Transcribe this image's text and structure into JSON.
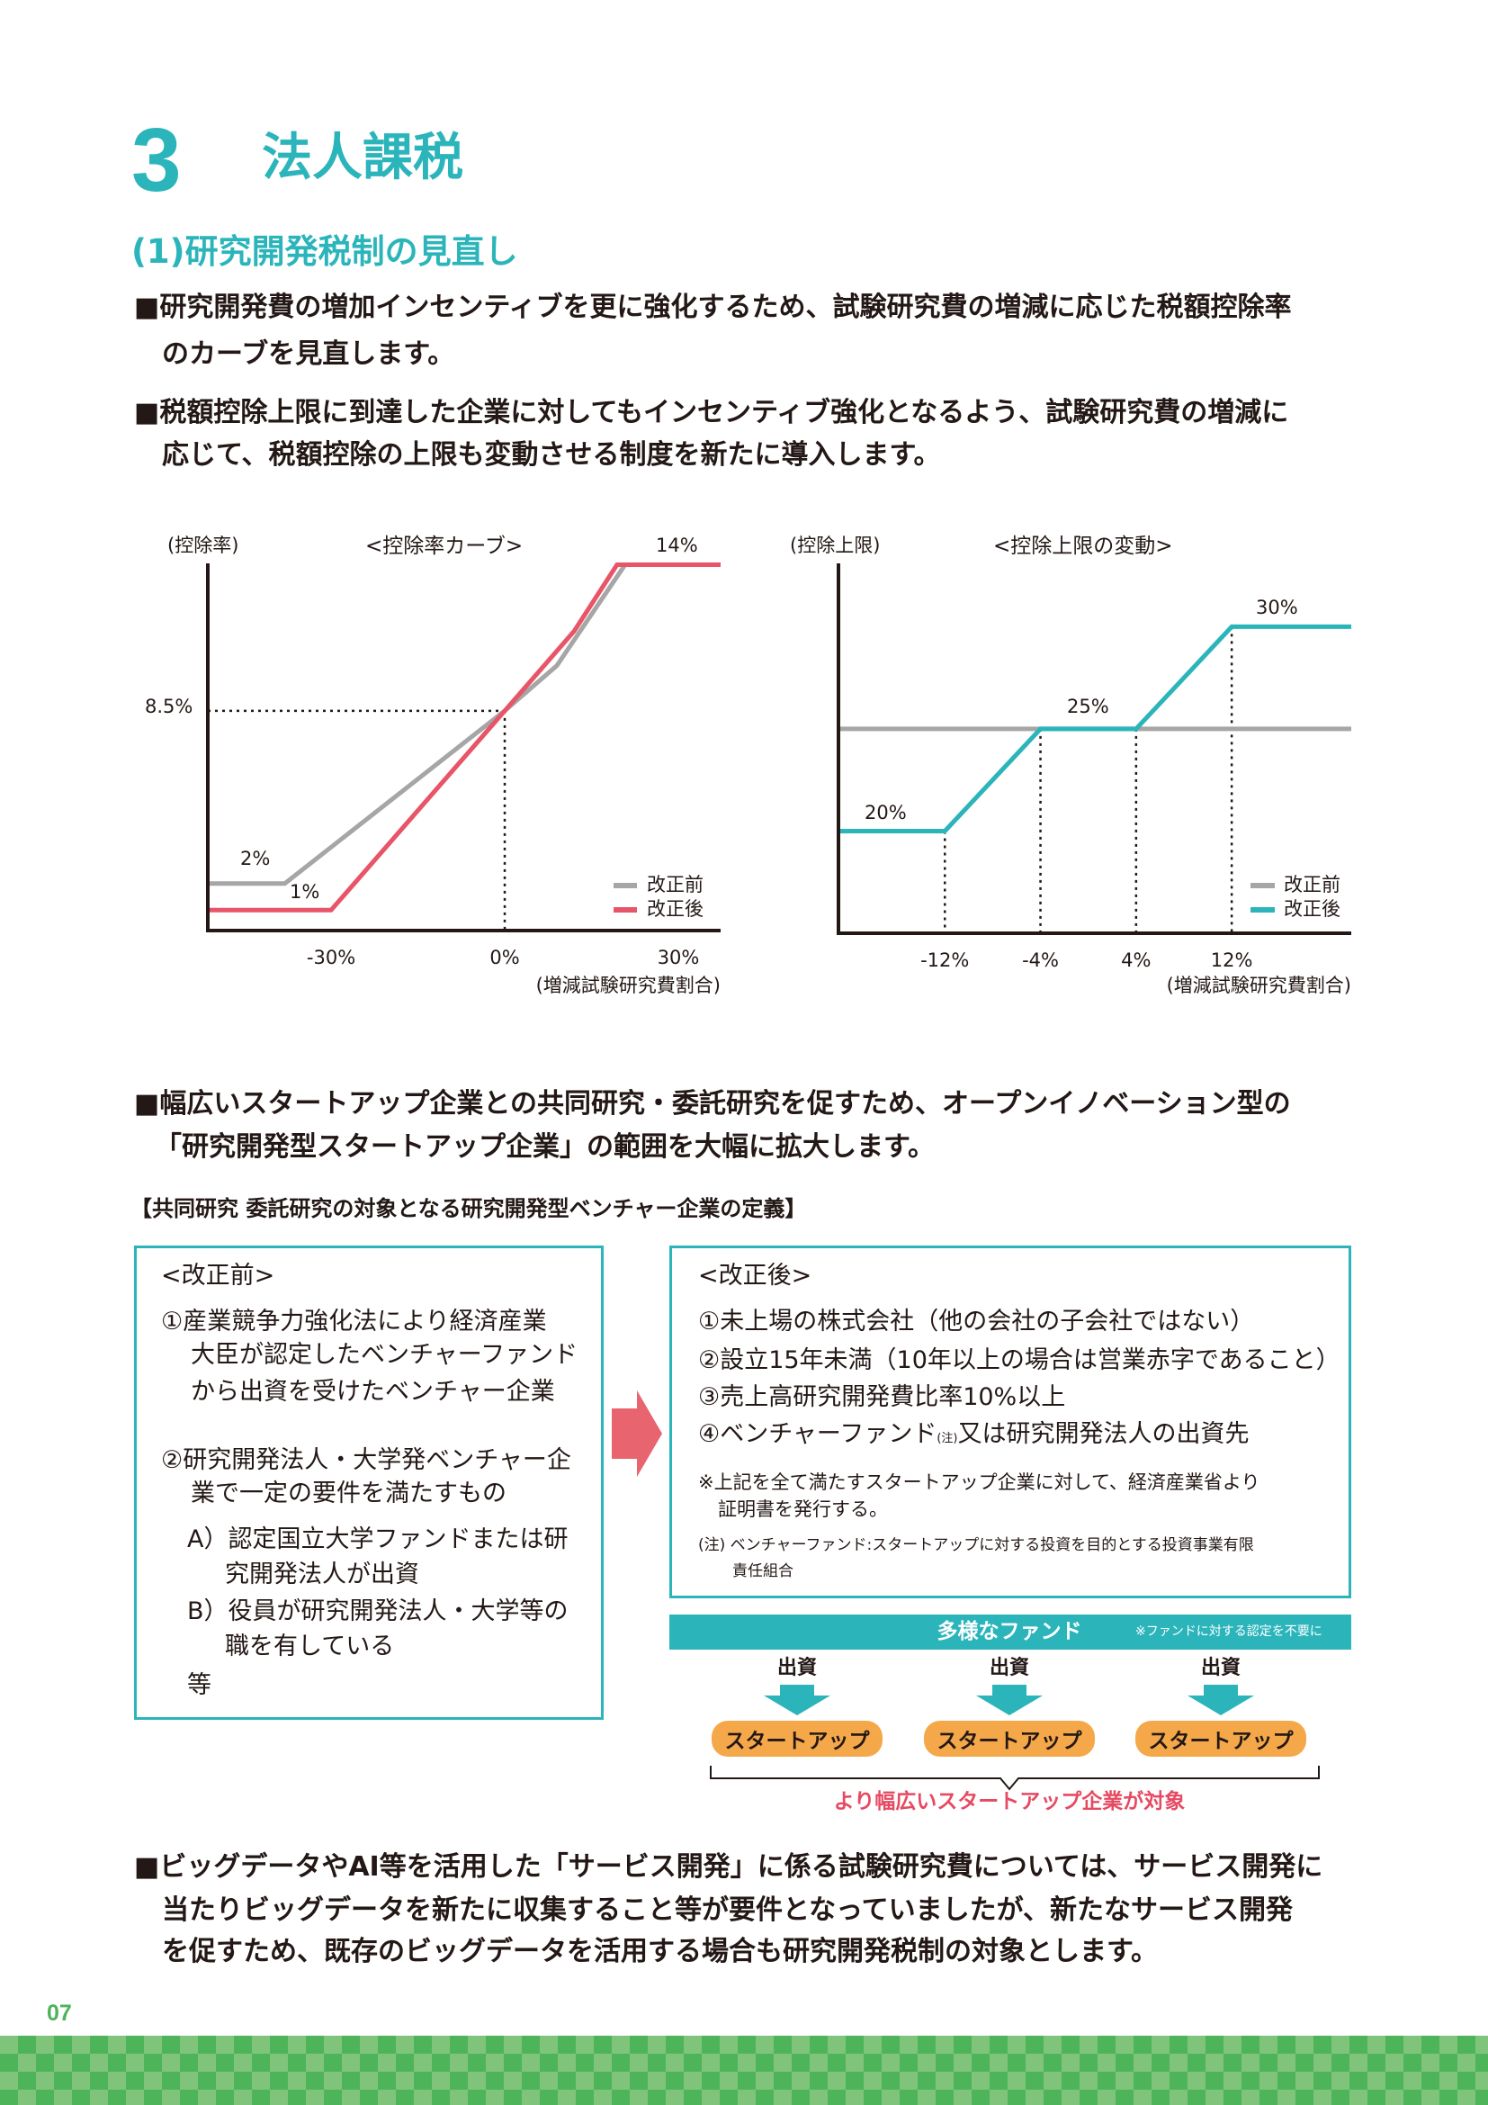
{
  "section": {
    "number": "3",
    "title": "法人課税",
    "subtitle": "(1)研究開発税制の見直し"
  },
  "bullets": {
    "b1": [
      "■研究開発費の増加インセンティブを更に強化するため、試験研究費の増減に応じた税額控除率",
      "のカーブを見直します。"
    ],
    "b2": [
      "■税額控除上限に到達した企業に対してもインセンティブ強化となるよう、試験研究費の増減に",
      "応じて、税額控除の上限も変動させる制度を新たに導入します。"
    ],
    "b3": [
      "■幅広いスタートアップ企業との共同研究・委託研究を促すため、オープンイノベーション型の",
      "「研究開発型スタートアップ企業」の範囲を大幅に拡大します。"
    ],
    "b4": [
      "■ビッグデータやAI等を活用した「サービス開発」に係る試験研究費については、サービス開発に",
      "当たりビッグデータを新たに収集すること等が要件となっていましたが、新たなサービス開発",
      "を促すため、既存のビッグデータを活用する場合も研究開発税制の対象とします。"
    ]
  },
  "chart_data": [
    {
      "type": "line",
      "title": "<控除率カーブ>",
      "ylabel": "(控除率)",
      "xlabel": "(増減試験研究費割合)",
      "xlim": [
        -51.3,
        37.3
      ],
      "ylim": [
        0.23,
        14.05
      ],
      "xticks": [
        {
          "value": -30,
          "label": "-30%"
        },
        {
          "value": 0,
          "label": "0%"
        },
        {
          "value": 30,
          "label": "30%"
        }
      ],
      "yticks": [
        {
          "value": 8.5,
          "label": "8.5%"
        }
      ],
      "guide_point": [
        0,
        8.5
      ],
      "series": [
        {
          "name": "改正前",
          "color": "#a6a6a6",
          "points": [
            [
              -51.3,
              2
            ],
            [
              -38,
              2
            ],
            [
              0,
              8.5
            ],
            [
              9,
              10.2
            ],
            [
              20.8,
              14
            ],
            [
              37.3,
              14
            ]
          ]
        },
        {
          "name": "改正後",
          "color": "#e85468",
          "points": [
            [
              -51.3,
              1
            ],
            [
              -30,
              1
            ],
            [
              0,
              8.5
            ],
            [
              12,
              11.5
            ],
            [
              19.4,
              14
            ],
            [
              37.3,
              14
            ]
          ]
        }
      ],
      "annotations": {
        "top": "14%",
        "before_min": "2%",
        "after_min": "1%"
      },
      "legend": "bottom-right"
    },
    {
      "type": "line",
      "title": "<控除上限の変動>",
      "ylabel": "(控除上限)",
      "xlabel": "(増減試験研究費割合)",
      "xlim": [
        -20.9,
        22
      ],
      "ylim": [
        15,
        33.1
      ],
      "xticks": [
        {
          "value": -12,
          "label": "-12%"
        },
        {
          "value": -4,
          "label": "-4%"
        },
        {
          "value": 4,
          "label": "4%"
        },
        {
          "value": 12,
          "label": "12%"
        }
      ],
      "series": [
        {
          "name": "改正前",
          "color": "#a6a6a6",
          "points": [
            [
              -20.9,
              25
            ],
            [
              22,
              25
            ]
          ]
        },
        {
          "name": "改正後",
          "color": "#2bb5bb",
          "points": [
            [
              -20.9,
              20
            ],
            [
              -12,
              20
            ],
            [
              -4,
              25
            ],
            [
              4,
              25
            ],
            [
              12,
              30
            ],
            [
              22,
              30
            ]
          ]
        }
      ],
      "annotations": {
        "high": "30%",
        "mid": "25%",
        "low": "20%"
      },
      "legend": "bottom-right"
    }
  ],
  "definition": {
    "heading": "【共同研究 委託研究の対象となる研究開発型ベンチャー企業の定義】",
    "before": {
      "title": "<改正前>",
      "lines": [
        "①産業競争力強化法により経済産業",
        "大臣が認定したベンチャーファンド",
        "から出資を受けたベンチャー企業",
        "②研究開発法人・大学発ベンチャー企",
        "業で一定の要件を満たすもの",
        "A）認定国立大学ファンドまたは研",
        "究開発法人が出資",
        "B）役員が研究開発法人・大学等の",
        "職を有している",
        "等"
      ]
    },
    "after": {
      "title": "<改正後>",
      "items": [
        "①未上場の株式会社（他の会社の子会社ではない）",
        "②設立15年未満（10年以上の場合は営業赤字であること）",
        "③売上高研究開発費比率10%以上"
      ],
      "item4_a": "④ベンチャーファンド",
      "item4_sup": "(注)",
      "item4_b": "又は研究開発法人の出資先",
      "note": [
        "※上記を全て満たすスタートアップ企業に対して、経済産業省より",
        "証明書を発行する。"
      ],
      "footnote": [
        "(注) ベンチャーファンド:スタートアップに対する投資を目的とする投資事業有限",
        "責任組合"
      ]
    },
    "fund_bar": {
      "label": "多様なファンド",
      "note": "※ファンドに対する認定を不要に"
    },
    "investment_label": "出資",
    "startup_label": "スタートアップ",
    "conclusion": "より幅広いスタートアップ企業が対象"
  },
  "page_number": "07",
  "colors": {
    "teal": "#2bb5bb",
    "red": "#e85468",
    "gray": "#a6a6a6",
    "orange": "#f5a84a",
    "green": "#4db45a"
  }
}
